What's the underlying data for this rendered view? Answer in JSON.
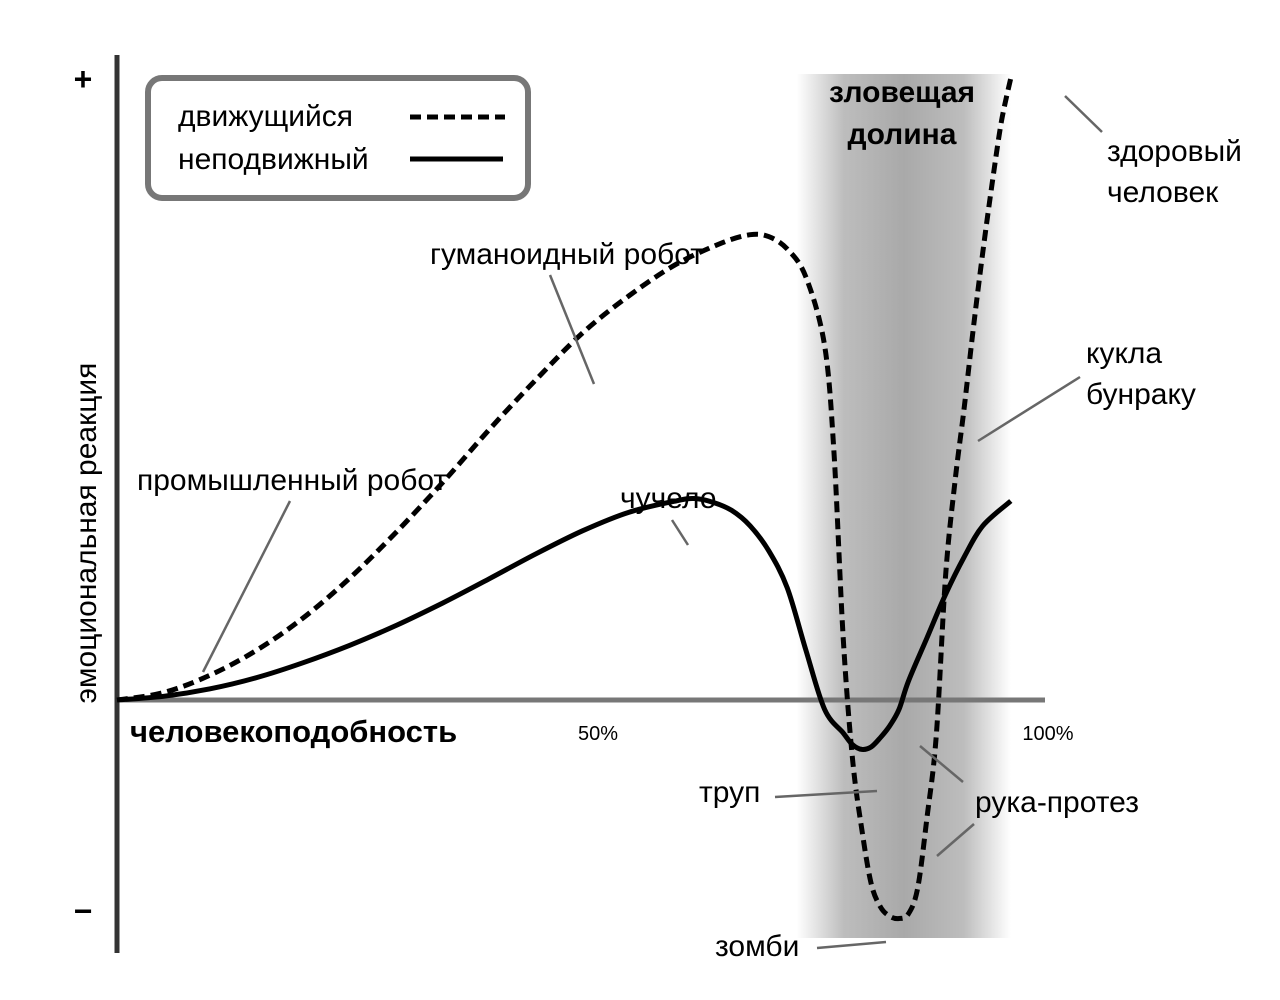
{
  "chart_data": {
    "type": "line",
    "title": "",
    "xlabel": "человекоподобность",
    "ylabel": "эмоциональная реакция",
    "x_ticks": [
      {
        "value": 50,
        "label": "50%"
      },
      {
        "value": 100,
        "label": "100%"
      }
    ],
    "y_markers": {
      "top": "+",
      "bottom": "−"
    },
    "xlim": [
      0,
      100
    ],
    "ylim": [
      -1,
      1
    ],
    "grid": false,
    "legend": {
      "placement": "top-left",
      "entries": [
        {
          "label": "движущийся",
          "style": "dashed"
        },
        {
          "label": "неподвижный",
          "style": "solid"
        }
      ]
    },
    "region": {
      "label_line1": "зловещая",
      "label_line2": "долина",
      "x_from": 73,
      "x_to": 96
    },
    "series": [
      {
        "name": "движущийся",
        "style": "dashed",
        "points": [
          [
            0,
            0
          ],
          [
            5,
            0.012
          ],
          [
            10,
            0.04
          ],
          [
            15,
            0.08
          ],
          [
            20,
            0.132
          ],
          [
            25,
            0.196
          ],
          [
            30,
            0.27
          ],
          [
            35,
            0.35
          ],
          [
            40,
            0.435
          ],
          [
            45,
            0.515
          ],
          [
            50,
            0.59
          ],
          [
            55,
            0.65
          ],
          [
            60,
            0.7
          ],
          [
            65,
            0.735
          ],
          [
            68,
            0.748
          ],
          [
            70,
            0.745
          ],
          [
            72,
            0.725
          ],
          [
            74,
            0.68
          ],
          [
            76,
            0.57
          ],
          [
            77,
            0.4
          ],
          [
            78,
            0.1
          ],
          [
            79,
            -0.25
          ],
          [
            80,
            -0.55
          ],
          [
            81,
            -0.78
          ],
          [
            82,
            -0.88
          ],
          [
            83,
            -0.92
          ],
          [
            84,
            -0.93
          ],
          [
            85,
            -0.91
          ],
          [
            86,
            -0.8
          ],
          [
            87,
            -0.5
          ],
          [
            88,
            -0.15
          ],
          [
            89,
            0.2
          ],
          [
            90,
            0.35
          ],
          [
            91,
            0.47
          ],
          [
            92,
            0.6
          ],
          [
            93,
            0.72
          ],
          [
            94,
            0.83
          ],
          [
            95,
            0.93
          ],
          [
            96,
            1.0
          ]
        ]
      },
      {
        "name": "неподвижный",
        "style": "solid",
        "points": [
          [
            0,
            0
          ],
          [
            5,
            0.006
          ],
          [
            10,
            0.018
          ],
          [
            15,
            0.036
          ],
          [
            20,
            0.06
          ],
          [
            25,
            0.088
          ],
          [
            30,
            0.12
          ],
          [
            35,
            0.156
          ],
          [
            40,
            0.195
          ],
          [
            45,
            0.235
          ],
          [
            50,
            0.272
          ],
          [
            55,
            0.302
          ],
          [
            60,
            0.32
          ],
          [
            62,
            0.324
          ],
          [
            64,
            0.318
          ],
          [
            66,
            0.305
          ],
          [
            68,
            0.28
          ],
          [
            70,
            0.24
          ],
          [
            72,
            0.18
          ],
          [
            74,
            0.08
          ],
          [
            76,
            -0.04
          ],
          [
            78,
            -0.14
          ],
          [
            79,
            -0.19
          ],
          [
            80,
            -0.21
          ],
          [
            81,
            -0.2
          ],
          [
            82,
            -0.16
          ],
          [
            83,
            -0.11
          ],
          [
            84,
            -0.04
          ],
          [
            85,
            0.03
          ],
          [
            87,
            0.1
          ],
          [
            89,
            0.17
          ],
          [
            91,
            0.23
          ],
          [
            93,
            0.28
          ],
          [
            96,
            0.32
          ]
        ]
      }
    ],
    "annotations": [
      {
        "text": "промышленный робот",
        "x": 9,
        "y": 0.07
      },
      {
        "text": "гуманоидный робот",
        "x": 50,
        "y": 0.76
      },
      {
        "text": "чучело",
        "x": 61,
        "y": 0.38
      },
      {
        "text": "здоровый",
        "line2": "человек",
        "x": 96,
        "y": 1.0
      },
      {
        "text": "кукла",
        "line2": "бунраку",
        "x": 89,
        "y": 0.6
      },
      {
        "text": "труп",
        "x": 79,
        "y": -0.21
      },
      {
        "text": "рука-протез",
        "x": 86,
        "y": -0.11
      },
      {
        "text": "зомби",
        "x": 83,
        "y": -0.93
      }
    ]
  }
}
